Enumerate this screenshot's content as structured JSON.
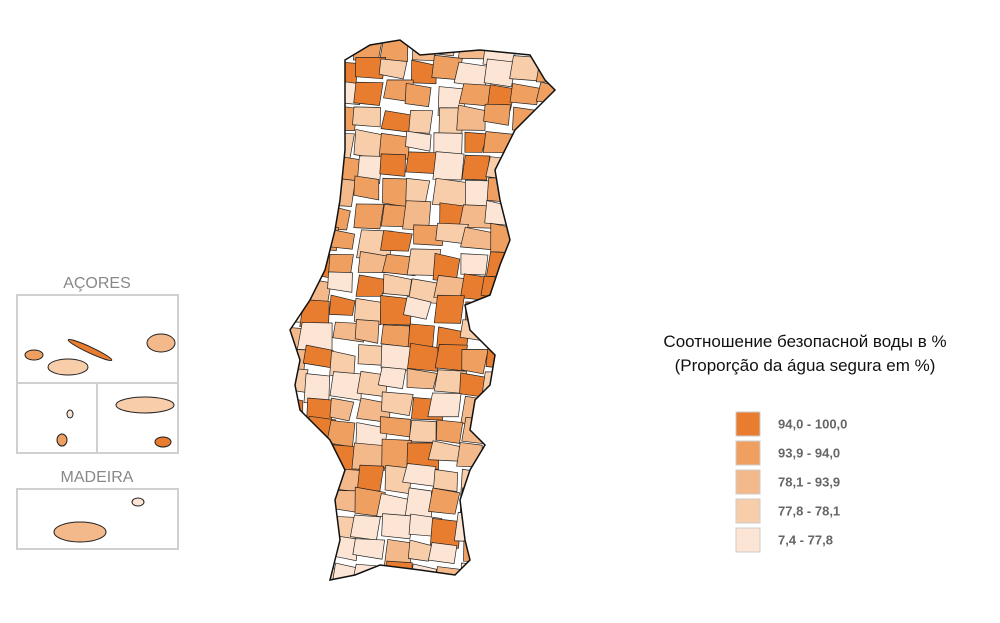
{
  "insets": [
    {
      "label": "AÇORES"
    },
    {
      "label": "MADEIRA"
    }
  ],
  "legend": {
    "title": [
      "Соотношение безопасной воды в %",
      "(Proporção da água segura em %)"
    ],
    "items": [
      {
        "label": "94,0 - 100,0",
        "color": "#e97d2f"
      },
      {
        "label": "93,9 - 94,0",
        "color": "#efa061"
      },
      {
        "label": "78,1 - 93,9",
        "color": "#f4b98a"
      },
      {
        "label": "77,8 - 78,1",
        "color": "#f8cdaa"
      },
      {
        "label": "7,4 - 77,8",
        "color": "#fce5d4"
      }
    ]
  }
}
